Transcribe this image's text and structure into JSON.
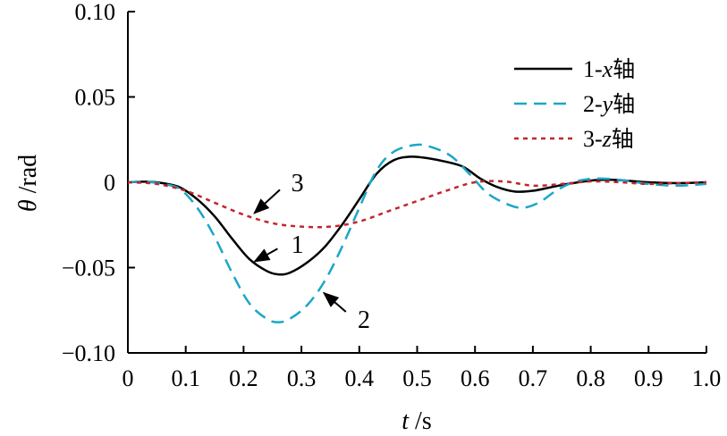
{
  "chart_data": {
    "type": "line",
    "title": "",
    "xlabel_var": "t",
    "xlabel_unit": " /s",
    "ylabel_var": "θ",
    "ylabel_unit": " /rad",
    "xlim": [
      0,
      1.0
    ],
    "ylim": [
      -0.1,
      0.1
    ],
    "x_ticks": [
      0,
      0.1,
      0.2,
      0.3,
      0.4,
      0.5,
      0.6,
      0.7,
      0.8,
      0.9,
      1.0
    ],
    "x_tick_labels": [
      "0",
      "0.1",
      "0.2",
      "0.3",
      "0.4",
      "0.5",
      "0.6",
      "0.7",
      "0.8",
      "0.9",
      "1.0"
    ],
    "y_ticks": [
      -0.1,
      -0.05,
      0,
      0.05,
      0.1
    ],
    "y_tick_labels": [
      "−0.10",
      "−0.05",
      "0",
      "0.05",
      "0.10"
    ],
    "grid": false,
    "legend_position": "top-right",
    "series": [
      {
        "name": "1-x轴",
        "legend_num": "1-",
        "legend_var": "x",
        "legend_cn": "轴",
        "color": "#000000",
        "dash": "solid",
        "x": [
          0,
          0.03,
          0.06,
          0.09,
          0.12,
          0.15,
          0.18,
          0.21,
          0.24,
          0.26,
          0.28,
          0.31,
          0.34,
          0.37,
          0.4,
          0.43,
          0.46,
          0.49,
          0.52,
          0.55,
          0.58,
          0.61,
          0.64,
          0.67,
          0.7,
          0.73,
          0.76,
          0.8,
          0.83,
          0.86,
          0.9,
          0.95,
          1.0
        ],
        "y": [
          0,
          0.0003,
          -0.0005,
          -0.003,
          -0.01,
          -0.02,
          -0.033,
          -0.045,
          -0.052,
          -0.054,
          -0.053,
          -0.047,
          -0.038,
          -0.025,
          -0.01,
          0.005,
          0.013,
          0.015,
          0.014,
          0.012,
          0.009,
          0.002,
          -0.003,
          -0.0055,
          -0.005,
          -0.003,
          -0.001,
          0.001,
          0.0015,
          0.001,
          0,
          -0.0005,
          0
        ]
      },
      {
        "name": "2-y轴",
        "legend_num": "2-",
        "legend_var": "y",
        "legend_cn": "轴",
        "color": "#1aa7c8",
        "dash": "dashed",
        "x": [
          0,
          0.03,
          0.06,
          0.09,
          0.12,
          0.15,
          0.18,
          0.21,
          0.24,
          0.26,
          0.28,
          0.31,
          0.34,
          0.37,
          0.4,
          0.43,
          0.46,
          0.5,
          0.53,
          0.56,
          0.59,
          0.62,
          0.65,
          0.68,
          0.71,
          0.74,
          0.77,
          0.8,
          0.83,
          0.86,
          0.9,
          0.95,
          1.0
        ],
        "y": [
          0,
          0.0003,
          -0.001,
          -0.004,
          -0.015,
          -0.032,
          -0.053,
          -0.071,
          -0.08,
          -0.082,
          -0.08,
          -0.072,
          -0.058,
          -0.038,
          -0.015,
          0.007,
          0.018,
          0.022,
          0.02,
          0.015,
          0.005,
          -0.006,
          -0.012,
          -0.015,
          -0.012,
          -0.005,
          0,
          0.002,
          0.002,
          0.001,
          -0.001,
          -0.002,
          -0.001
        ]
      },
      {
        "name": "3-z轴",
        "legend_num": "3-",
        "legend_var": "z",
        "legend_cn": "轴",
        "color": "#c0272d",
        "dash": "dotted",
        "x": [
          0,
          0.05,
          0.1,
          0.15,
          0.2,
          0.25,
          0.3,
          0.35,
          0.4,
          0.45,
          0.5,
          0.55,
          0.6,
          0.65,
          0.7,
          0.75,
          0.8,
          0.85,
          0.9,
          0.95,
          1.0
        ],
        "y": [
          0,
          -0.001,
          -0.005,
          -0.012,
          -0.019,
          -0.024,
          -0.026,
          -0.026,
          -0.023,
          -0.017,
          -0.011,
          -0.005,
          0,
          0.0005,
          -0.002,
          -0.001,
          0.0005,
          0,
          -0.001,
          -0.0005,
          0
        ]
      }
    ],
    "annotations": [
      {
        "label": "1",
        "series": "1-x轴",
        "point": [
          0.215,
          -0.047
        ],
        "text_at": [
          0.29,
          -0.036
        ]
      },
      {
        "label": "2",
        "series": "2-y轴",
        "point": [
          0.335,
          -0.064
        ],
        "text_at": [
          0.405,
          -0.08
        ]
      },
      {
        "label": "3",
        "series": "3-z轴",
        "point": [
          0.215,
          -0.019
        ],
        "text_at": [
          0.29,
          0.0
        ]
      }
    ]
  }
}
